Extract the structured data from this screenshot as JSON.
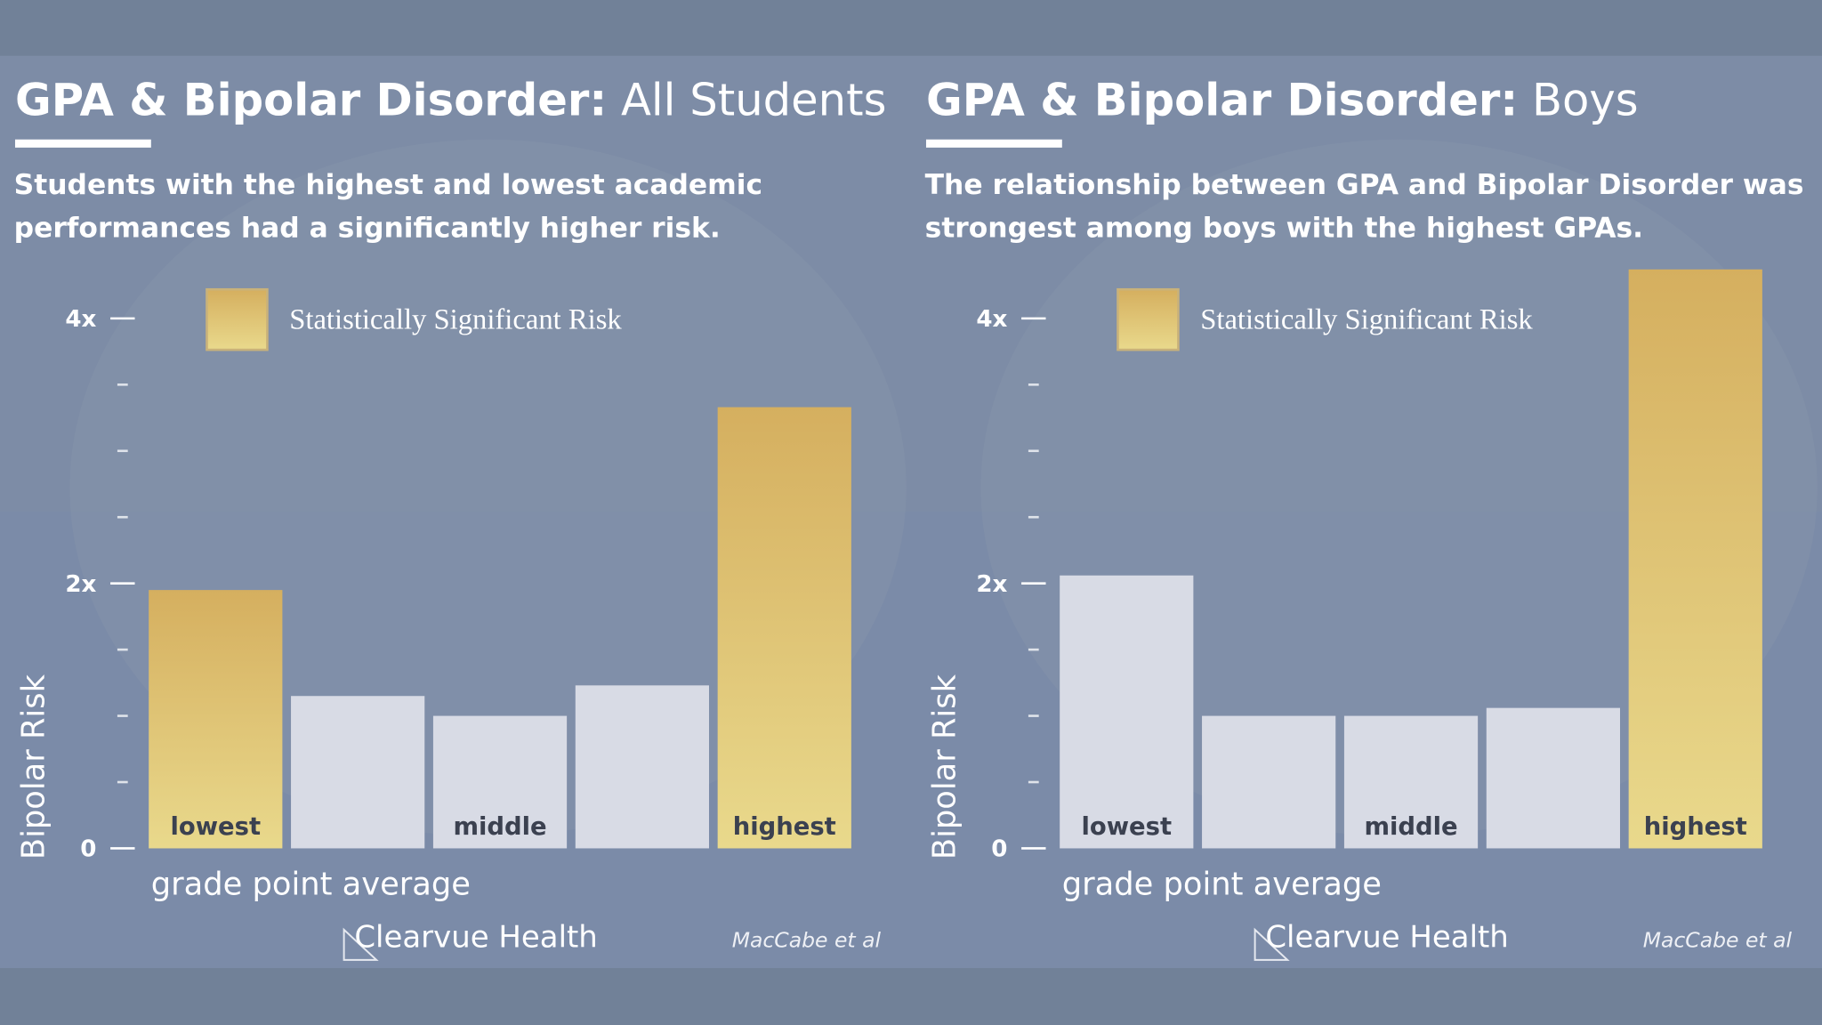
{
  "chart_data": [
    {
      "type": "bar",
      "title": "GPA & Bipolar Disorder:",
      "title_suffix": "All Students",
      "subtitle": [
        "Students with the highest and lowest academic",
        "performances had a significantly higher risk."
      ],
      "legend_label": "Statistically Significant Risk",
      "ylabel": "Bipolar Risk",
      "xlabel": "grade point average",
      "brand": "Clearvue Health",
      "source": "MacCabe et al",
      "categories": [
        "lowest",
        null,
        "middle",
        null,
        "highest"
      ],
      "values": [
        1.95,
        1.15,
        1.0,
        1.23,
        3.33
      ],
      "significant": [
        true,
        false,
        false,
        false,
        true
      ],
      "significant_gradient": [
        "#d5af5f",
        "#e9d98c"
      ],
      "color": "#dfe2ea",
      "ylim": [
        0,
        4.5
      ],
      "yticks": [
        {
          "value": 0,
          "label": "0"
        },
        {
          "value": 2,
          "label": "2x"
        },
        {
          "value": 4,
          "label": "4x"
        }
      ],
      "yminorticks": [
        0.5,
        1,
        1.5,
        2.5,
        3,
        3.5
      ]
    },
    {
      "type": "bar",
      "title": "GPA & Bipolar Disorder:",
      "title_suffix": "Boys",
      "subtitle": [
        "The relationship between GPA and Bipolar Disorder was",
        "strongest among boys with the highest GPAs."
      ],
      "legend_label": "Statistically Significant Risk",
      "ylabel": "Bipolar Risk",
      "xlabel": "grade point average",
      "brand": "Clearvue Health",
      "source": "MacCabe et al",
      "categories": [
        "lowest",
        null,
        "middle",
        null,
        "highest"
      ],
      "values": [
        2.06,
        1.0,
        1.0,
        1.06,
        4.37
      ],
      "significant": [
        false,
        false,
        false,
        false,
        true
      ],
      "significant_gradient": [
        "#d5af5f",
        "#e9d98c"
      ],
      "color": "#dfe2ea",
      "ylim": [
        0,
        4.5
      ],
      "yticks": [
        {
          "value": 0,
          "label": "0"
        },
        {
          "value": 2,
          "label": "2x"
        },
        {
          "value": 4,
          "label": "4x"
        }
      ],
      "yminorticks": [
        0.5,
        1,
        1.5,
        2.5,
        3,
        3.5
      ]
    }
  ]
}
